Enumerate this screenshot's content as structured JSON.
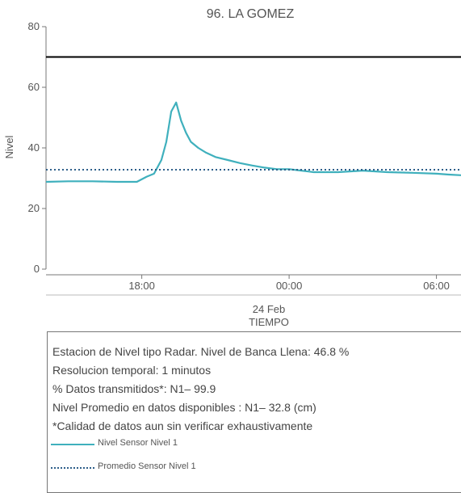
{
  "chart_data": {
    "type": "line",
    "title": "96. LA GOMEZ",
    "ylabel": "Nivel",
    "xlabel": "TIEMPO",
    "x_sublabel": "24 Feb",
    "ylim": [
      0,
      80
    ],
    "xlim": [
      14.1,
      31.0
    ],
    "yticks": [
      0,
      20,
      40,
      60,
      80
    ],
    "xticks": [
      {
        "value": 18,
        "label": "18:00"
      },
      {
        "value": 24,
        "label": "00:00"
      },
      {
        "value": 30,
        "label": "06:00"
      }
    ],
    "reference_line": {
      "value": 70,
      "color": "#000000"
    },
    "series": [
      {
        "name": "Nivel Sensor Nivel 1",
        "color": "#3fb0bd",
        "style": "solid",
        "x": [
          14.1,
          15.0,
          16.0,
          17.0,
          17.8,
          18.2,
          18.5,
          18.8,
          19.0,
          19.2,
          19.4,
          19.6,
          19.8,
          20.0,
          20.3,
          20.6,
          21.0,
          21.5,
          22.0,
          22.5,
          23.0,
          23.5,
          24.0,
          24.5,
          25.0,
          26.0,
          27.0,
          28.0,
          29.0,
          30.0,
          30.5,
          31.0
        ],
        "y": [
          28.8,
          29.0,
          29.0,
          28.8,
          28.8,
          30.5,
          31.5,
          36.0,
          42.0,
          52.0,
          55.0,
          49.0,
          45.0,
          42.0,
          40.0,
          38.5,
          37.0,
          36.0,
          35.0,
          34.2,
          33.5,
          33.0,
          33.0,
          32.5,
          32.0,
          32.0,
          32.5,
          32.0,
          31.8,
          31.5,
          31.2,
          31.0
        ]
      },
      {
        "name": "Promedio Sensor Nivel 1",
        "color": "#2e5f8a",
        "style": "dotted",
        "x": [
          14.1,
          31.0
        ],
        "y": [
          32.8,
          32.8
        ]
      }
    ],
    "grid": false,
    "legend": "bottom"
  },
  "info": {
    "lines": [
      "Estacion de Nivel tipo Radar. Nivel de Banca Llena: 46.8 %",
      "Resolucion temporal: 1 minutos",
      "% Datos transmitidos*: N1– 99.9",
      "Nivel Promedio en datos disponibles : N1– 32.8 (cm)",
      "*Calidad de datos aun sin verificar exhaustivamente"
    ]
  },
  "colors": {
    "series_line": "#3fb0bd",
    "mean_line": "#2e5f8a",
    "reference_line": "#000000",
    "axis": "#777777"
  }
}
